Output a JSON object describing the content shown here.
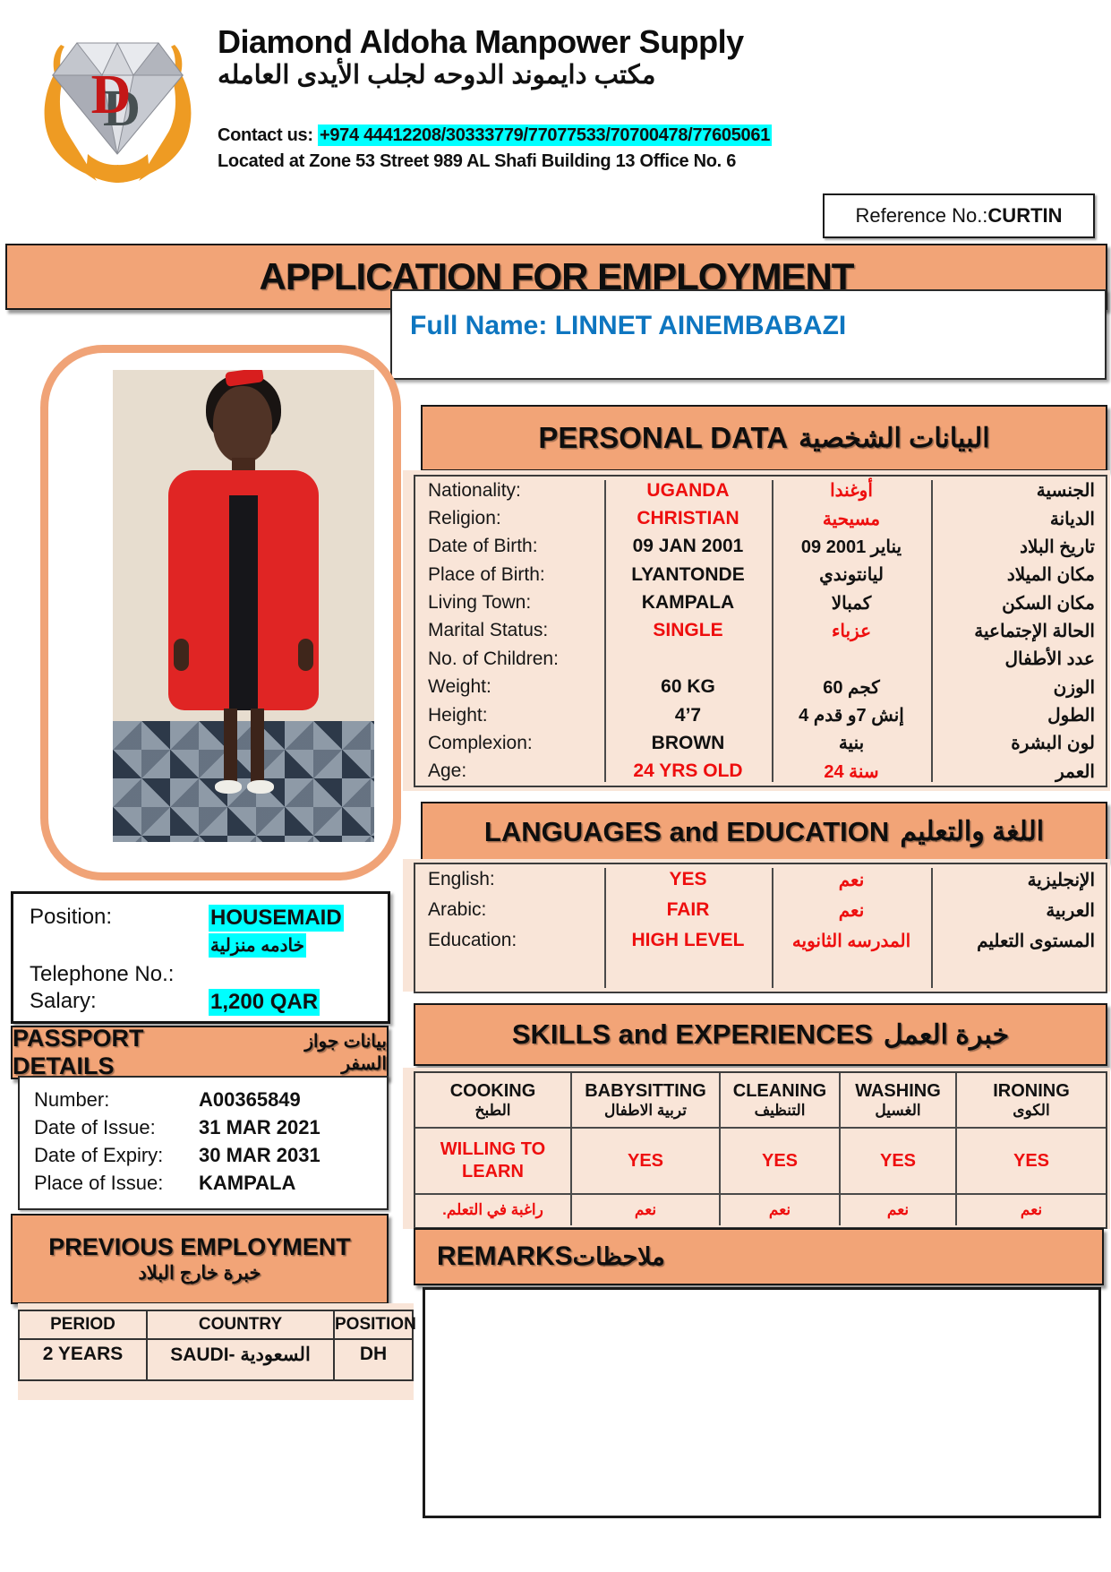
{
  "header": {
    "company_name": "Diamond Aldoha Manpower Supply",
    "company_name_arabic": "مكتب دايموند الدوحه لجلب الأيدى العامله",
    "contact_label": "Contact us: ",
    "contact_numbers": "+974 44412208/30333779/77077533/70700478/77605061",
    "address": "Located at Zone 53 Street 989 AL Shafi Building 13 Office No. 6",
    "reference": {
      "label": "Reference No.:",
      "value": "CURTIN"
    }
  },
  "title_bar": {
    "text": "APPLICATION FOR EMPLOYMENT"
  },
  "full_name": {
    "label": "Full Name: ",
    "value": "LINNET AINEMBABAZI"
  },
  "personal_data": {
    "title": "PERSONAL DATA",
    "title_arabic": "البيانات الشخصية",
    "rows": [
      {
        "label": "Nationality:",
        "value": "UGANDA",
        "value_ar": "أوغندا",
        "label_ar": "الجنسية",
        "red": true
      },
      {
        "label": "Religion:",
        "value": "CHRISTIAN",
        "value_ar": "مسيحية",
        "label_ar": "الديانة",
        "red": true
      },
      {
        "label": "Date of Birth:",
        "value": "09 JAN 2001",
        "value_ar": "09 2001 يناير",
        "label_ar": "تاريخ البلاد",
        "red": false
      },
      {
        "label": "Place of Birth:",
        "value": "LYANTONDE",
        "value_ar": "ليانتوندي",
        "label_ar": "مكان الميلاد",
        "red": false
      },
      {
        "label": "Living Town:",
        "value": "KAMPALA",
        "value_ar": "كمبالا",
        "label_ar": "مكان السكن",
        "red": false
      },
      {
        "label": "Marital Status:",
        "value": "SINGLE",
        "value_ar": "عزباء",
        "label_ar": "الحالة الإجتماعية",
        "red": true
      },
      {
        "label": "No. of Children:",
        "value": "",
        "value_ar": "",
        "label_ar": "عدد الأطفال",
        "red": false
      },
      {
        "label": "Weight:",
        "value": "60 KG",
        "value_ar": "60 كجم",
        "label_ar": "الوزن",
        "red": false
      },
      {
        "label": "Height:",
        "value": "4’7",
        "value_ar": "4 قدم‎ و‎7 إنش",
        "label_ar": "الطول",
        "red": false
      },
      {
        "label": "Complexion:",
        "value": "BROWN",
        "value_ar": "بنية",
        "label_ar": "لون البشرة",
        "red": false
      },
      {
        "label": "Age:",
        "value": "24 YRS OLD",
        "value_ar": "24 سنة",
        "label_ar": "العمر",
        "red": true
      }
    ]
  },
  "languages_education": {
    "title": "LANGUAGES and EDUCATION",
    "title_arabic": "اللغة والتعليم",
    "rows": [
      {
        "label": "English:",
        "value": "YES",
        "value_ar": "نعم",
        "label_ar": "الإنجليزية",
        "red": true
      },
      {
        "label": "Arabic:",
        "value": "FAIR",
        "value_ar": "نعم",
        "label_ar": "العربية",
        "red": true
      },
      {
        "label": "Education:",
        "value": "HIGH LEVEL",
        "value_ar": "المدرسه الثانويه",
        "label_ar": "المستوى التعليم",
        "red": true
      }
    ]
  },
  "position_box": {
    "position_label": "Position:",
    "position_value": "HOUSEMAID",
    "position_value_arabic": "خادمه منزلية",
    "telephone_label": "Telephone No.:",
    "telephone_value": "",
    "salary_label": "Salary:",
    "salary_value": "1,200 QAR"
  },
  "passport_details": {
    "title": "PASSPORT DETAILS",
    "title_arabic": "بيانات جواز السفر",
    "rows": [
      {
        "label": "Number:",
        "value": "A00365849"
      },
      {
        "label": "Date of Issue:",
        "value": "31 MAR 2021"
      },
      {
        "label": "Date of Expiry:",
        "value": "30 MAR 2031"
      },
      {
        "label": "Place of Issue:",
        "value": "KAMPALA"
      }
    ]
  },
  "previous_employment": {
    "title": "PREVIOUS EMPLOYMENT",
    "title_arabic": "خبرة خارج البلاد",
    "columns": [
      "PERIOD",
      "COUNTRY",
      "POSITION"
    ],
    "rows": [
      [
        "2 YEARS",
        "SAUDI- السعودية",
        "DH"
      ]
    ]
  },
  "skills_experiences": {
    "title": "SKILLS and EXPERIENCES",
    "title_arabic": "خبرة العمل",
    "columns": [
      {
        "en": "COOKING",
        "ar": "الطبخ"
      },
      {
        "en": "BABYSITTING",
        "ar": "تربية الاطفال"
      },
      {
        "en": "CLEANING",
        "ar": "التنظيف"
      },
      {
        "en": "WASHING",
        "ar": "الغسيل"
      },
      {
        "en": "IRONING",
        "ar": "الكوى"
      }
    ],
    "values_row": [
      "WILLING TO LEARN",
      "YES",
      "YES",
      "YES",
      "YES"
    ],
    "values_row_arabic": [
      "راغبة في التعلم.",
      "نعم",
      "نعم",
      "نعم",
      "نعم"
    ]
  },
  "remarks": {
    "title": "REMARKS",
    "title_arabic": "ملاحظات",
    "content": ""
  },
  "colors": {
    "accent_orange": "#f2a477",
    "panel_peach": "#f9e5d8",
    "highlight_cyan": "#00ffff",
    "red_value": "#ee0e0e",
    "blue_name": "#0e76c0",
    "hand_orange": "#ee9b23",
    "logo_d_red": "#c41717"
  }
}
